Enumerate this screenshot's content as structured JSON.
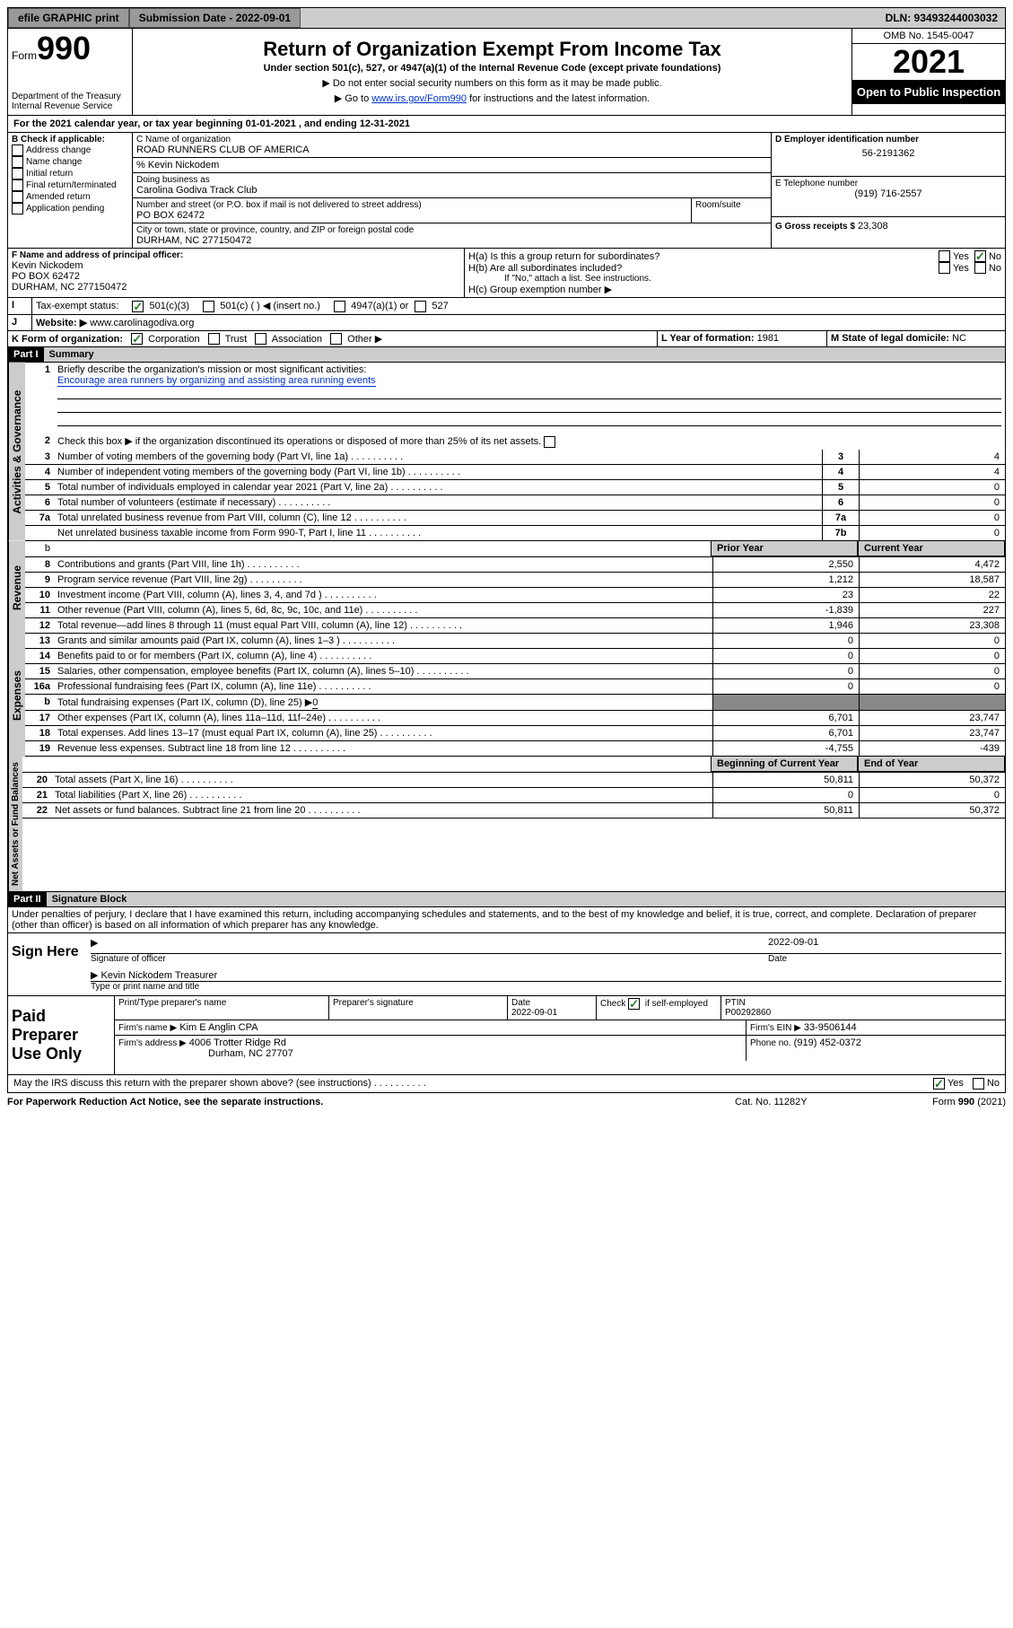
{
  "topbar": {
    "efile": "efile GRAPHIC print",
    "sub_label": "Submission Date - 2022-09-01",
    "dln": "DLN: 93493244003032"
  },
  "header": {
    "form_word": "Form",
    "form_num": "990",
    "dept": "Department of the Treasury Internal Revenue Service",
    "title": "Return of Organization Exempt From Income Tax",
    "sub": "Under section 501(c), 527, or 4947(a)(1) of the Internal Revenue Code (except private foundations)",
    "note1": "▶ Do not enter social security numbers on this form as it may be made public.",
    "note2_pre": "▶ Go to ",
    "note2_link": "www.irs.gov/Form990",
    "note2_post": " for instructions and the latest information.",
    "omb": "OMB No. 1545-0047",
    "year": "2021",
    "insp": "Open to Public Inspection"
  },
  "A": {
    "text": "For the 2021 calendar year, or tax year beginning 01-01-2021    , and ending 12-31-2021"
  },
  "B": {
    "label": "B Check if applicable:",
    "opts": [
      "Address change",
      "Name change",
      "Initial return",
      "Final return/terminated",
      "Amended return",
      "Application pending"
    ]
  },
  "C": {
    "name_lbl": "C Name of organization",
    "name": "ROAD RUNNERS CLUB OF AMERICA",
    "care_lbl": "% Kevin Nickodem",
    "dba_lbl": "Doing business as",
    "dba": "Carolina Godiva Track Club",
    "addr_lbl": "Number and street (or P.O. box if mail is not delivered to street address)",
    "room_lbl": "Room/suite",
    "addr": "PO BOX 62472",
    "city_lbl": "City or town, state or province, country, and ZIP or foreign postal code",
    "city": "DURHAM, NC  277150472"
  },
  "D": {
    "lbl": "D Employer identification number",
    "val": "56-2191362"
  },
  "E": {
    "lbl": "E Telephone number",
    "val": "(919) 716-2557"
  },
  "G": {
    "lbl": "G Gross receipts $",
    "val": "23,308"
  },
  "F": {
    "lbl": "F  Name and address of principal officer:",
    "name": "Kevin Nickodem",
    "addr": "PO BOX 62472",
    "city": "DURHAM, NC  277150472"
  },
  "H": {
    "a": "H(a)  Is this a group return for subordinates?",
    "b": "H(b)  Are all subordinates included?",
    "b_note": "If \"No,\" attach a list. See instructions.",
    "c": "H(c)  Group exemption number ▶",
    "yes": "Yes",
    "no": "No"
  },
  "I": {
    "lbl": "Tax-exempt status:",
    "o1": "501(c)(3)",
    "o2": "501(c) (  ) ◀ (insert no.)",
    "o3": "4947(a)(1) or",
    "o4": "527"
  },
  "J": {
    "lbl": "Website: ▶",
    "val": "www.carolinagodiva.org"
  },
  "K": {
    "lbl": "K Form of organization:",
    "o1": "Corporation",
    "o2": "Trust",
    "o3": "Association",
    "o4": "Other ▶"
  },
  "L": {
    "lbl": "L Year of formation:",
    "val": "1981"
  },
  "M": {
    "lbl": "M State of legal domicile:",
    "val": "NC"
  },
  "part1": {
    "hdr": "Part I",
    "title": "Summary",
    "l1a": "Briefly describe the organization's mission or most significant activities:",
    "l1b": "Encourage area runners by organizing and assisting area running events",
    "l2": "Check this box ▶ if the organization discontinued its operations or disposed of more than 25% of its net assets.",
    "rows_ag": [
      {
        "n": "3",
        "d": "Number of voting members of the governing body (Part VI, line 1a)",
        "b": "3",
        "v": "4"
      },
      {
        "n": "4",
        "d": "Number of independent voting members of the governing body (Part VI, line 1b)",
        "b": "4",
        "v": "4"
      },
      {
        "n": "5",
        "d": "Total number of individuals employed in calendar year 2021 (Part V, line 2a)",
        "b": "5",
        "v": "0"
      },
      {
        "n": "6",
        "d": "Total number of volunteers (estimate if necessary)",
        "b": "6",
        "v": "0"
      },
      {
        "n": "7a",
        "d": "Total unrelated business revenue from Part VIII, column (C), line 12",
        "b": "7a",
        "v": "0"
      },
      {
        "n": "",
        "d": "Net unrelated business taxable income from Form 990-T, Part I, line 11",
        "b": "7b",
        "v": "0"
      }
    ],
    "col_prior": "Prior Year",
    "col_curr": "Current Year",
    "rows_rev": [
      {
        "n": "8",
        "d": "Contributions and grants (Part VIII, line 1h)",
        "p": "2,550",
        "c": "4,472"
      },
      {
        "n": "9",
        "d": "Program service revenue (Part VIII, line 2g)",
        "p": "1,212",
        "c": "18,587"
      },
      {
        "n": "10",
        "d": "Investment income (Part VIII, column (A), lines 3, 4, and 7d )",
        "p": "23",
        "c": "22"
      },
      {
        "n": "11",
        "d": "Other revenue (Part VIII, column (A), lines 5, 6d, 8c, 9c, 10c, and 11e)",
        "p": "-1,839",
        "c": "227"
      },
      {
        "n": "12",
        "d": "Total revenue—add lines 8 through 11 (must equal Part VIII, column (A), line 12)",
        "p": "1,946",
        "c": "23,308"
      }
    ],
    "rows_exp": [
      {
        "n": "13",
        "d": "Grants and similar amounts paid (Part IX, column (A), lines 1–3 )",
        "p": "0",
        "c": "0"
      },
      {
        "n": "14",
        "d": "Benefits paid to or for members (Part IX, column (A), line 4)",
        "p": "0",
        "c": "0"
      },
      {
        "n": "15",
        "d": "Salaries, other compensation, employee benefits (Part IX, column (A), lines 5–10)",
        "p": "0",
        "c": "0"
      },
      {
        "n": "16a",
        "d": "Professional fundraising fees (Part IX, column (A), line 11e)",
        "p": "0",
        "c": "0"
      }
    ],
    "row16b": {
      "n": "b",
      "d": "Total fundraising expenses (Part IX, column (D), line 25) ▶",
      "v": "0"
    },
    "rows_exp2": [
      {
        "n": "17",
        "d": "Other expenses (Part IX, column (A), lines 11a–11d, 11f–24e)",
        "p": "6,701",
        "c": "23,747"
      },
      {
        "n": "18",
        "d": "Total expenses. Add lines 13–17 (must equal Part IX, column (A), line 25)",
        "p": "6,701",
        "c": "23,747"
      },
      {
        "n": "19",
        "d": "Revenue less expenses. Subtract line 18 from line 12",
        "p": "-4,755",
        "c": "-439"
      }
    ],
    "col_beg": "Beginning of Current Year",
    "col_end": "End of Year",
    "rows_na": [
      {
        "n": "20",
        "d": "Total assets (Part X, line 16)",
        "p": "50,811",
        "c": "50,372"
      },
      {
        "n": "21",
        "d": "Total liabilities (Part X, line 26)",
        "p": "0",
        "c": "0"
      },
      {
        "n": "22",
        "d": "Net assets or fund balances. Subtract line 21 from line 20",
        "p": "50,811",
        "c": "50,372"
      }
    ],
    "tab_ag": "Activities & Governance",
    "tab_rev": "Revenue",
    "tab_exp": "Expenses",
    "tab_na": "Net Assets or Fund Balances"
  },
  "part2": {
    "hdr": "Part II",
    "title": "Signature Block",
    "decl": "Under penalties of perjury, I declare that I have examined this return, including accompanying schedules and statements, and to the best of my knowledge and belief, it is true, correct, and complete. Declaration of preparer (other than officer) is based on all information of which preparer has any knowledge.",
    "sign_here": "Sign Here",
    "sig_of": "Signature of officer",
    "date_lbl": "Date",
    "date": "2022-09-01",
    "name": "Kevin Nickodem  Treasurer",
    "name_lbl": "Type or print name and title",
    "paid": "Paid Preparer Use Only",
    "pt_name_lbl": "Print/Type preparer's name",
    "prep_sig_lbl": "Preparer's signature",
    "prep_date": "2022-09-01",
    "self_emp": "Check        if self-employed",
    "ptin_lbl": "PTIN",
    "ptin": "P00292860",
    "firm_name_lbl": "Firm's name    ▶",
    "firm_name": "Kim E Anglin CPA",
    "firm_ein_lbl": "Firm's EIN ▶",
    "firm_ein": "33-9506144",
    "firm_addr_lbl": "Firm's address ▶",
    "firm_addr1": "4006 Trotter Ridge Rd",
    "firm_addr2": "Durham, NC  27707",
    "phone_lbl": "Phone no.",
    "phone": "(919) 452-0372",
    "discuss": "May the IRS discuss this return with the preparer shown above? (see instructions)"
  },
  "footer": {
    "pra": "For Paperwork Reduction Act Notice, see the separate instructions.",
    "cat": "Cat. No. 11282Y",
    "form": "Form 990 (2021)"
  }
}
